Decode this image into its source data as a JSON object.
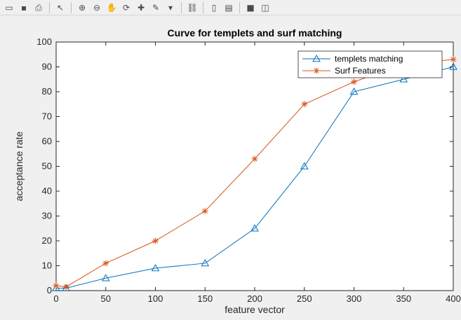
{
  "toolbar": {
    "icons": [
      "open-folder-icon",
      "save-icon",
      "print-icon",
      "pointer-icon",
      "zoom-in-icon",
      "zoom-out-icon",
      "pan-icon",
      "rotate-icon",
      "data-cursor-icon",
      "brush-icon",
      "link-icon",
      "colorbar-icon",
      "legend-icon",
      "hide-tools-icon",
      "dock-icon"
    ]
  },
  "chart_data": {
    "type": "line",
    "title": "Curve for templets and surf matching",
    "xlabel": "feature vector",
    "ylabel": "acceptance rate",
    "xlim": [
      0,
      400
    ],
    "ylim": [
      0,
      100
    ],
    "xticks": [
      "0",
      "50",
      "100",
      "150",
      "200",
      "250",
      "300",
      "350",
      "400"
    ],
    "yticks": [
      "0",
      "10",
      "20",
      "30",
      "40",
      "50",
      "60",
      "70",
      "80",
      "90",
      "100"
    ],
    "grid": false,
    "legend_position": "top-right",
    "series": [
      {
        "name": "templets matching",
        "color": "#0072bd",
        "marker": "triangle",
        "x": [
          0,
          10,
          50,
          100,
          150,
          200,
          250,
          300,
          350,
          400
        ],
        "y": [
          1,
          1,
          5,
          9,
          11,
          25,
          50,
          80,
          85,
          90
        ]
      },
      {
        "name": "Surf Features",
        "color": "#d95319",
        "marker": "asterisk",
        "x": [
          0,
          10,
          50,
          100,
          150,
          200,
          250,
          300,
          350,
          400
        ],
        "y": [
          2,
          1.5,
          11,
          20,
          32,
          53,
          75,
          84,
          91,
          93
        ]
      }
    ]
  }
}
